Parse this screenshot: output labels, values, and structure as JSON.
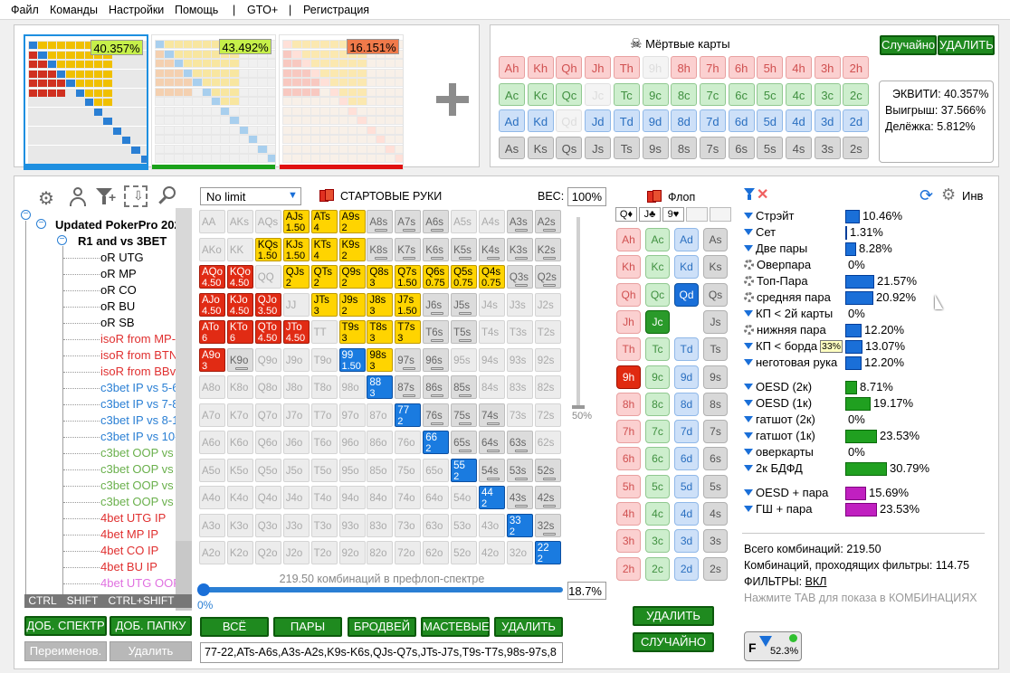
{
  "menu": [
    "Файл",
    "Команды",
    "Настройки",
    "Помощь",
    "|",
    "GTO+",
    "|",
    "Регистрация"
  ],
  "ranges": [
    {
      "pct": "40.357%",
      "pct_bg": "#c6f04a",
      "bar": "#1e8fe0"
    },
    {
      "pct": "43.492%",
      "pct_bg": "#c6f04a",
      "bar": "#1aa11a"
    },
    {
      "pct": "16.151%",
      "pct_bg": "#f07a4a",
      "bar": "#e01010"
    }
  ],
  "dead": {
    "title": "Мёртвые карты",
    "random": "Случайно",
    "delete": "УДАЛИТЬ",
    "rows": [
      {
        "suit": "h",
        "cards": [
          "Ah",
          "Kh",
          "Qh",
          "Jh",
          "Th",
          "9h",
          "8h",
          "7h",
          "6h",
          "5h",
          "4h",
          "3h",
          "2h"
        ]
      },
      {
        "suit": "c",
        "cards": [
          "Ac",
          "Kc",
          "Qc",
          "Jc",
          "Tc",
          "9c",
          "8c",
          "7c",
          "6c",
          "5c",
          "4c",
          "3c",
          "2c"
        ]
      },
      {
        "suit": "d",
        "cards": [
          "Ad",
          "Kd",
          "Qd",
          "Jd",
          "Td",
          "9d",
          "8d",
          "7d",
          "6d",
          "5d",
          "4d",
          "3d",
          "2d"
        ]
      },
      {
        "suit": "s",
        "cards": [
          "As",
          "Ks",
          "Qs",
          "Js",
          "Ts",
          "9s",
          "8s",
          "7s",
          "6s",
          "5s",
          "4s",
          "3s",
          "2s"
        ]
      }
    ],
    "faded": [
      "9h",
      "Jc",
      "Qd"
    ]
  },
  "equity": {
    "l1": "ЭКВИТИ: 40.357%",
    "l2": "Выигрыш: 37.566%",
    "l3": "Делёжка: 5.812%"
  },
  "tree": {
    "root": "Updated PokerPro 2021",
    "sub": "R1 and vs 3BET",
    "items": [
      {
        "t": "oR UTG",
        "c": "#000"
      },
      {
        "t": "oR MP",
        "c": "#000"
      },
      {
        "t": "oR CO",
        "c": "#000"
      },
      {
        "t": "oR BU",
        "c": "#000"
      },
      {
        "t": "oR SB",
        "c": "#000"
      },
      {
        "t": "isoR from MP-CO",
        "c": "#e03030"
      },
      {
        "t": "isoR from BTN-B",
        "c": "#e03030"
      },
      {
        "t": "isoR from BBvsSB",
        "c": "#e03030"
      },
      {
        "t": "c3bet IP vs 5-6%",
        "c": "#2a7fd4"
      },
      {
        "t": "c3bet IP vs 7-8%",
        "c": "#2a7fd4"
      },
      {
        "t": "c3bet IP vs 8-10%",
        "c": "#2a7fd4"
      },
      {
        "t": "c3bet IP vs 10-15",
        "c": "#2a7fd4"
      },
      {
        "t": "c3bet OOP vs 5-6",
        "c": "#6ab04c"
      },
      {
        "t": "c3bet OOP vs 7-8",
        "c": "#6ab04c"
      },
      {
        "t": "c3bet OOP vs 8-1",
        "c": "#6ab04c"
      },
      {
        "t": "c3bet OOP vs 12",
        "c": "#6ab04c"
      },
      {
        "t": "4bet UTG IP",
        "c": "#e03030"
      },
      {
        "t": "4bet MP IP",
        "c": "#e03030"
      },
      {
        "t": "4bet CO IP",
        "c": "#e03030"
      },
      {
        "t": "4bet BU IP",
        "c": "#e03030"
      },
      {
        "t": "4bet UTG OOP",
        "c": "#e070e0"
      }
    ],
    "keys": [
      "CTRL",
      "SHIFT",
      "CTRL+SHIFT"
    ],
    "add_spectrum": "ДОБ. СПЕКТР",
    "add_folder": "ДОБ. ПАПКУ",
    "rename": "Переименов.",
    "delete": "Удалить"
  },
  "grid": {
    "limit": "No limit",
    "title": "СТАРТОВЫЕ РУКИ",
    "weight_label": "ВЕС:",
    "weight": "100%",
    "slider_label": "50%",
    "combos": "219.50 комбинаций в префлоп-спектре",
    "progress_left": "0%",
    "progress_right": "18.7%",
    "buttons": [
      "ВСЁ",
      "ПАРЫ",
      "БРОДВЕЙ",
      "МАСТЕВЫЕ",
      "УДАЛИТЬ"
    ],
    "range_text": "77-22,ATs-A6s,A3s-A2s,K9s-K6s,QJs-Q7s,JTs-J7s,T9s-T7s,98s-97s,8",
    "rows": [
      [
        "AA",
        "AKs",
        "AQs",
        "AJs",
        "ATs",
        "A9s",
        "A8s",
        "A7s",
        "A6s",
        "A5s",
        "A4s",
        "A3s",
        "A2s"
      ],
      [
        "AKo",
        "KK",
        "KQs",
        "KJs",
        "KTs",
        "K9s",
        "K8s",
        "K7s",
        "K6s",
        "K5s",
        "K4s",
        "K3s",
        "K2s"
      ],
      [
        "AQo",
        "KQo",
        "QQ",
        "QJs",
        "QTs",
        "Q9s",
        "Q8s",
        "Q7s",
        "Q6s",
        "Q5s",
        "Q4s",
        "Q3s",
        "Q2s"
      ],
      [
        "AJo",
        "KJo",
        "QJo",
        "JJ",
        "JTs",
        "J9s",
        "J8s",
        "J7s",
        "J6s",
        "J5s",
        "J4s",
        "J3s",
        "J2s"
      ],
      [
        "ATo",
        "KTo",
        "QTo",
        "JTo",
        "TT",
        "T9s",
        "T8s",
        "T7s",
        "T6s",
        "T5s",
        "T4s",
        "T3s",
        "T2s"
      ],
      [
        "A9o",
        "K9o",
        "Q9o",
        "J9o",
        "T9o",
        "99",
        "98s",
        "97s",
        "96s",
        "95s",
        "94s",
        "93s",
        "92s"
      ],
      [
        "A8o",
        "K8o",
        "Q8o",
        "J8o",
        "T8o",
        "98o",
        "88",
        "87s",
        "86s",
        "85s",
        "84s",
        "83s",
        "82s"
      ],
      [
        "A7o",
        "K7o",
        "Q7o",
        "J7o",
        "T7o",
        "97o",
        "87o",
        "77",
        "76s",
        "75s",
        "74s",
        "73s",
        "72s"
      ],
      [
        "A6o",
        "K6o",
        "Q6o",
        "J6o",
        "T6o",
        "96o",
        "86o",
        "76o",
        "66",
        "65s",
        "64s",
        "63s",
        "62s"
      ],
      [
        "A5o",
        "K5o",
        "Q5o",
        "J5o",
        "T5o",
        "95o",
        "85o",
        "75o",
        "65o",
        "55",
        "54s",
        "53s",
        "52s"
      ],
      [
        "A4o",
        "K4o",
        "Q4o",
        "J4o",
        "T4o",
        "94o",
        "84o",
        "74o",
        "64o",
        "54o",
        "44",
        "43s",
        "42s"
      ],
      [
        "A3o",
        "K3o",
        "Q3o",
        "J3o",
        "T3o",
        "93o",
        "83o",
        "73o",
        "63o",
        "53o",
        "43o",
        "33",
        "32s"
      ],
      [
        "A2o",
        "K2o",
        "Q2o",
        "J2o",
        "T2o",
        "92o",
        "82o",
        "72o",
        "62o",
        "52o",
        "42o",
        "32o",
        "22"
      ]
    ],
    "cells": {
      "AJs": [
        "y",
        "1.50"
      ],
      "ATs": [
        "y",
        "4"
      ],
      "A9s": [
        "y",
        "2"
      ],
      "KQs": [
        "y",
        "1.50"
      ],
      "KJs": [
        "y",
        "1.50"
      ],
      "KTs": [
        "y",
        "4"
      ],
      "K9s": [
        "y",
        "2"
      ],
      "AQo": [
        "r",
        "4.50"
      ],
      "KQo": [
        "r",
        "4.50"
      ],
      "QJs": [
        "y",
        "2"
      ],
      "QTs": [
        "y",
        "2"
      ],
      "Q9s": [
        "y",
        "2"
      ],
      "Q8s": [
        "y",
        "3"
      ],
      "Q7s": [
        "y",
        "1.50"
      ],
      "Q6s": [
        "y",
        "0.75"
      ],
      "Q5s": [
        "y",
        "0.75"
      ],
      "Q4s": [
        "y",
        "0.75"
      ],
      "AJo": [
        "r",
        "4.50"
      ],
      "KJo": [
        "r",
        "4.50"
      ],
      "QJo": [
        "r",
        "3.50"
      ],
      "JTs": [
        "y",
        "3"
      ],
      "J9s": [
        "y",
        "2"
      ],
      "J8s": [
        "y",
        "3"
      ],
      "J7s": [
        "y",
        "1.50"
      ],
      "ATo": [
        "r",
        "6"
      ],
      "KTo": [
        "r",
        "6"
      ],
      "QTo": [
        "r",
        "4.50"
      ],
      "JTo": [
        "r",
        "4.50"
      ],
      "T9s": [
        "y",
        "3"
      ],
      "T8s": [
        "y",
        "3"
      ],
      "T7s": [
        "y",
        "3"
      ],
      "A9o": [
        "r",
        "3"
      ],
      "99": [
        "b",
        "1.50"
      ],
      "98s": [
        "y",
        "3"
      ],
      "88": [
        "b",
        "3"
      ],
      "87s": [
        "d",
        ""
      ],
      "86s": [
        "d",
        ""
      ],
      "77": [
        "b",
        "2"
      ],
      "76s": [
        "d",
        ""
      ],
      "75s": [
        "d",
        ""
      ],
      "66": [
        "b",
        "2"
      ],
      "65s": [
        "d",
        ""
      ],
      "64s": [
        "d",
        ""
      ],
      "55": [
        "b",
        "2"
      ],
      "54s": [
        "d",
        ""
      ],
      "53s": [
        "d",
        ""
      ],
      "44": [
        "b",
        "2"
      ],
      "43s": [
        "d",
        ""
      ],
      "33": [
        "b",
        "2"
      ],
      "22": [
        "b",
        "2"
      ],
      "97s": [
        "d",
        ""
      ],
      "K5s": [
        "d",
        ""
      ],
      "K4s": [
        "d",
        ""
      ],
      "K3s": [
        "d",
        ""
      ],
      "K2s": [
        "d",
        ""
      ],
      "A3s": [
        "d",
        ""
      ],
      "A2s": [
        "d",
        ""
      ],
      "A8s": [
        "d",
        ""
      ],
      "A7s": [
        "d",
        ""
      ],
      "A6s": [
        "d",
        ""
      ],
      "K8s": [
        "d",
        ""
      ],
      "K7s": [
        "d",
        ""
      ],
      "K6s": [
        "d",
        ""
      ],
      "J6s": [
        "d",
        ""
      ],
      "Q3s": [
        "d",
        ""
      ],
      "Q2s": [
        "d",
        ""
      ],
      "T6s": [
        "d",
        ""
      ],
      "96s": [
        "d",
        ""
      ],
      "85s": [
        "d",
        ""
      ],
      "74s": [
        "d",
        ""
      ],
      "63s": [
        "d",
        ""
      ],
      "52s": [
        "d",
        ""
      ],
      "42s": [
        "d",
        ""
      ],
      "32s": [
        "d",
        ""
      ],
      "K9o": [
        "d",
        ""
      ],
      "J5s": [
        "d",
        ""
      ],
      "T5s": [
        "d",
        ""
      ]
    }
  },
  "flop": {
    "title": "Флоп",
    "suits": [
      "Q♦",
      "J♣",
      "9♥"
    ],
    "cols": [
      [
        "Ah",
        "Kh",
        "Qh",
        "Jh",
        "Th",
        "9h",
        "8h",
        "7h",
        "6h",
        "5h",
        "4h",
        "3h",
        "2h"
      ],
      [
        "Ac",
        "Kc",
        "Qc",
        "Jc",
        "Tc",
        "9c",
        "8c",
        "7c",
        "6c",
        "5c",
        "4c",
        "3c",
        "2c"
      ],
      [
        "Ad",
        "Kd",
        "Qd",
        "Td",
        "9d",
        "8d",
        "7d",
        "6d",
        "5d",
        "4d",
        "3d",
        "2d"
      ],
      [
        "As",
        "Ks",
        "Qs",
        "Js",
        "Ts",
        "9s",
        "8s",
        "7s",
        "6s",
        "5s",
        "4s",
        "3s",
        "2s"
      ]
    ],
    "delete": "УДАЛИТЬ",
    "random": "СЛУЧАЙНО"
  },
  "stats": {
    "inv": "Инв",
    "rows": [
      {
        "icon": "funnel",
        "label": "Стрэйт",
        "val": "10.46%",
        "w": 16,
        "color": "#1a6fd8"
      },
      {
        "icon": "funnel",
        "label": "Сет",
        "val": "1.31%",
        "w": 2,
        "color": "#1a6fd8"
      },
      {
        "icon": "funnel",
        "label": "Две пары",
        "val": "8.28%",
        "w": 12,
        "color": "#1a6fd8"
      },
      {
        "icon": "gear",
        "label": "Оверпара",
        "val": "0%",
        "w": 0,
        "color": "#1a6fd8"
      },
      {
        "icon": "gear",
        "label": "Топ-Пара",
        "val": "21.57%",
        "w": 32,
        "color": "#1a6fd8"
      },
      {
        "icon": "gear",
        "label": "средняя пара",
        "val": "20.92%",
        "w": 31,
        "color": "#1a6fd8"
      },
      {
        "icon": "funnel",
        "label": "КП < 2й карты",
        "val": "0%",
        "w": 0,
        "color": "#1a6fd8"
      },
      {
        "icon": "gear",
        "label": "нижняя пара",
        "val": "12.20%",
        "w": 18,
        "color": "#1a6fd8"
      },
      {
        "icon": "funnel",
        "label": "КП < борда",
        "val": "13.07%",
        "w": 19,
        "color": "#1a6fd8",
        "badge": "33%"
      },
      {
        "icon": "funnel",
        "label": "неготовая рука",
        "val": "12.20%",
        "w": 18,
        "color": "#1a6fd8"
      },
      {
        "icon": "funnel",
        "label": "OESD (2к)",
        "val": "8.71%",
        "w": 13,
        "color": "#20a020"
      },
      {
        "icon": "funnel",
        "label": "OESD (1к)",
        "val": "19.17%",
        "w": 28,
        "color": "#20a020"
      },
      {
        "icon": "funnel",
        "label": "гатшот (2к)",
        "val": "0%",
        "w": 0,
        "color": "#20a020"
      },
      {
        "icon": "funnel",
        "label": "гатшот (1к)",
        "val": "23.53%",
        "w": 35,
        "color": "#20a020"
      },
      {
        "icon": "funnel",
        "label": "оверкарты",
        "val": "0%",
        "w": 0,
        "color": "#20a020"
      },
      {
        "icon": "funnel",
        "label": "2к БДФД",
        "val": "30.79%",
        "w": 46,
        "color": "#20a020"
      },
      {
        "icon": "funnel",
        "label": "OESD + пара",
        "val": "15.69%",
        "w": 23,
        "color": "#c020c0"
      },
      {
        "icon": "funnel",
        "label": "ГШ + пара",
        "val": "23.53%",
        "w": 35,
        "color": "#c020c0"
      }
    ],
    "total": "Всего комбинаций: 219.50",
    "passed": "Комбинаций, проходящих фильтры: 114.75",
    "filters_label": "ФИЛЬТРЫ:",
    "filters_val": "ВКЛ",
    "hint": "Нажмите TAB для показа в КОМБИНАЦИЯХ",
    "badge_pct": "52.3%"
  }
}
